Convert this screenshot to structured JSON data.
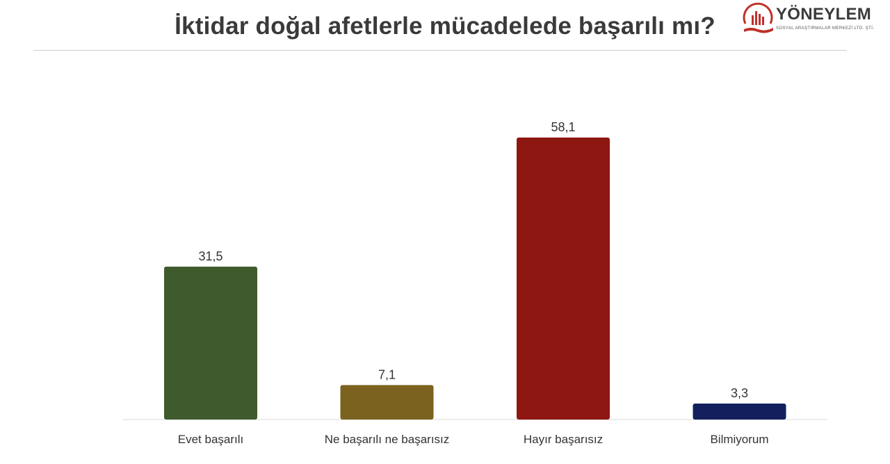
{
  "header": {
    "title": "İktidar doğal afetlerle mücadelede başarılı mı?"
  },
  "logo": {
    "name": "YÖNEYLEM",
    "subtitle": "SOSYAL ARAŞTIRMALAR MERKEZİ LTD. ŞTİ.",
    "icon": "bar-chart-hand-logo-icon",
    "color": "#c0302a"
  },
  "chart_data": {
    "type": "bar",
    "title": "İktidar doğal afetlerle mücadelede başarılı mı?",
    "categories": [
      "Evet başarılı",
      "Ne başarılı ne başarısız",
      "Hayır başarısız",
      "Bilmiyorum"
    ],
    "values": [
      31.5,
      7.1,
      58.1,
      3.3
    ],
    "value_labels": [
      "31,5",
      "7,1",
      "58,1",
      "3,3"
    ],
    "colors": [
      "#3f5a2c",
      "#7b621e",
      "#8e1711",
      "#13205d"
    ],
    "xlabel": "",
    "ylabel": "",
    "ylim": [
      0,
      60
    ],
    "grid": false,
    "legend": "none"
  }
}
